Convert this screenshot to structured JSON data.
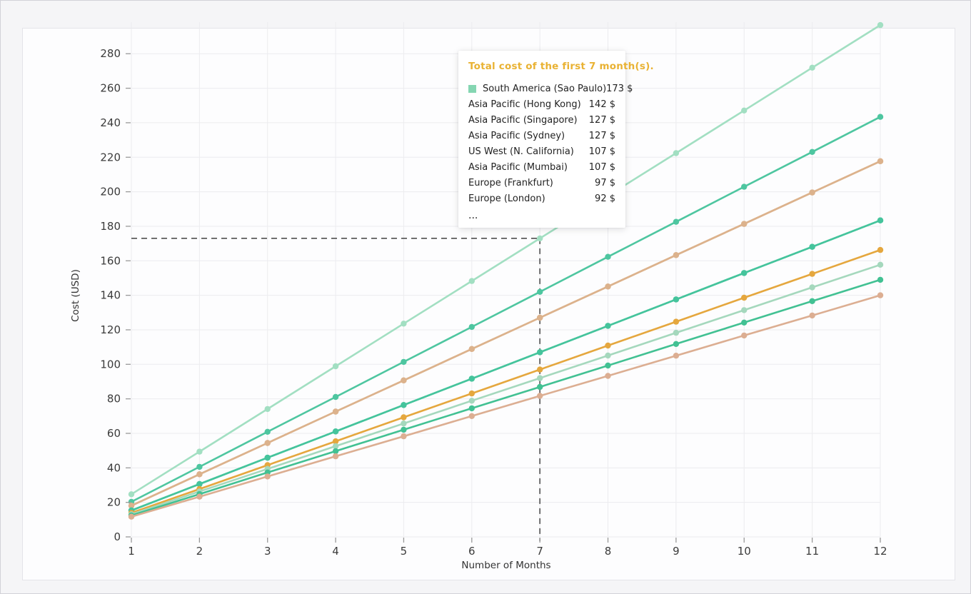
{
  "page": {
    "background": "#f5f5f7",
    "card_background": "#fdfdfe"
  },
  "chart_data": {
    "type": "line",
    "title": "",
    "xlabel": "Number of Months",
    "ylabel": "Cost (USD)",
    "x": [
      1,
      2,
      3,
      4,
      5,
      6,
      7,
      8,
      9,
      10,
      11,
      12
    ],
    "x_ticks": [
      "1",
      "2",
      "3",
      "4",
      "5",
      "6",
      "7",
      "8",
      "9",
      "10",
      "11",
      "12"
    ],
    "y_ticks": [
      0,
      20,
      40,
      60,
      80,
      100,
      120,
      140,
      160,
      180,
      200,
      220,
      240,
      260,
      280
    ],
    "xlim": [
      1,
      12
    ],
    "ylim": [
      0,
      298
    ],
    "grid": true,
    "legend_position": "none",
    "series": [
      {
        "name": "South America (Sao Paulo)",
        "color": "#a2dfc2",
        "total_first_7_months": 173,
        "values": [
          24.7,
          49.4,
          74.1,
          98.9,
          123.6,
          148.3,
          173.0,
          197.7,
          222.4,
          247.1,
          271.9,
          296.6
        ]
      },
      {
        "name": "Asia Pacific (Hong Kong)",
        "color": "#4ec6a0",
        "total_first_7_months": 142,
        "values": [
          20.3,
          40.6,
          60.9,
          81.1,
          101.4,
          121.7,
          142.0,
          162.3,
          182.6,
          202.9,
          223.1,
          243.4
        ]
      },
      {
        "name": "Asia Pacific (Singapore)",
        "color": "#dcb28c",
        "total_first_7_months": 127,
        "values": [
          18.1,
          36.3,
          54.4,
          72.6,
          90.7,
          108.9,
          127.0,
          145.1,
          163.3,
          181.4,
          199.6,
          217.7
        ]
      },
      {
        "name": "Asia Pacific (Sydney)",
        "color": "#dcb28c",
        "total_first_7_months": 127,
        "values": [
          18.1,
          36.3,
          54.4,
          72.6,
          90.7,
          108.9,
          127.0,
          145.1,
          163.3,
          181.4,
          199.6,
          217.7
        ]
      },
      {
        "name": "US West (N. California)",
        "color": "#45c49c",
        "total_first_7_months": 107,
        "values": [
          15.3,
          30.6,
          45.9,
          61.1,
          76.4,
          91.7,
          107.0,
          122.3,
          137.6,
          152.9,
          168.1,
          183.4
        ]
      },
      {
        "name": "Asia Pacific (Mumbai)",
        "color": "#45c49c",
        "total_first_7_months": 107,
        "values": [
          15.3,
          30.6,
          45.9,
          61.1,
          76.4,
          91.7,
          107.0,
          122.3,
          137.6,
          152.9,
          168.1,
          183.4
        ]
      },
      {
        "name": "Europe (Frankfurt)",
        "color": "#e5a73e",
        "total_first_7_months": 97,
        "values": [
          13.9,
          27.7,
          41.6,
          55.4,
          69.3,
          83.1,
          97.0,
          110.9,
          124.7,
          138.6,
          152.4,
          166.3
        ]
      },
      {
        "name": "Europe (London)",
        "color": "#a5d8bd",
        "total_first_7_months": 92,
        "values": [
          13.1,
          26.3,
          39.4,
          52.6,
          65.7,
          78.9,
          92.0,
          105.1,
          118.3,
          131.4,
          144.6,
          157.7
        ]
      },
      {
        "name": "",
        "color": "#42c193",
        "total_first_7_months": 87,
        "values": [
          12.4,
          24.8,
          37.3,
          49.7,
          62.1,
          74.5,
          86.9,
          99.3,
          111.8,
          124.2,
          136.6,
          149.0
        ]
      },
      {
        "name": "",
        "color": "#dcae92",
        "total_first_7_months": 82,
        "values": [
          11.7,
          23.3,
          35.0,
          46.7,
          58.3,
          70.0,
          81.7,
          93.3,
          105.0,
          116.7,
          128.3,
          140.0
        ]
      }
    ],
    "crosshair": {
      "month": 7,
      "value": 173,
      "style": "dashed",
      "color": "#4f4f4f"
    }
  },
  "tooltip": {
    "title": "Total cost of the first 7 month(s).",
    "title_color": "#e9b233",
    "rows": [
      {
        "label": "South America (Sao Paulo)",
        "value": "173 $",
        "marker_color": "#85d6b2"
      },
      {
        "label": "Asia Pacific (Hong Kong)",
        "value": "142 $"
      },
      {
        "label": "Asia Pacific (Singapore)",
        "value": "127 $"
      },
      {
        "label": "Asia Pacific (Sydney)",
        "value": "127 $"
      },
      {
        "label": "US West (N. California)",
        "value": "107 $"
      },
      {
        "label": "Asia Pacific (Mumbai)",
        "value": "107 $"
      },
      {
        "label": "Europe (Frankfurt)",
        "value": "97 $"
      },
      {
        "label": "Europe (London)",
        "value": "92 $"
      }
    ],
    "more_indicator": "..."
  }
}
